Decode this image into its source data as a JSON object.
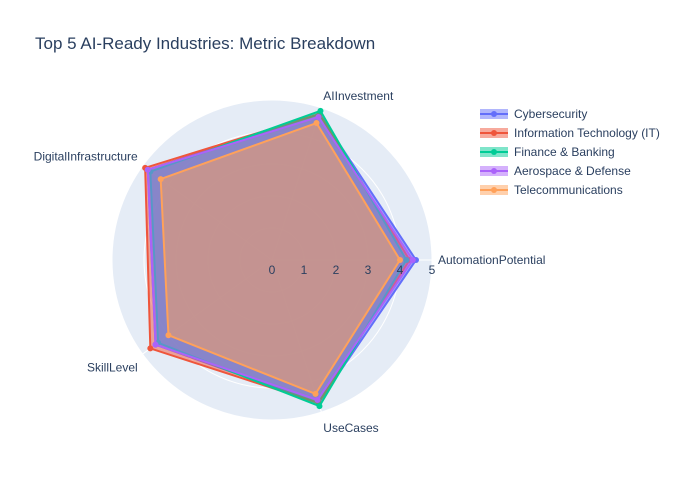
{
  "chart_data": {
    "type": "radar",
    "title": "Top 5 AI-Ready Industries: Metric Breakdown",
    "axes": [
      "AutomationPotential",
      "AIInvestment",
      "DigitalInfrastructure",
      "SkillLevel",
      "UseCases"
    ],
    "radial_range": [
      0,
      5
    ],
    "radial_ticks": [
      "0",
      "1",
      "2",
      "3",
      "4",
      "5"
    ],
    "legend_position": "top-right",
    "series": [
      {
        "name": "Cybersecurity",
        "color": "#636efa",
        "values": [
          4.5,
          4.8,
          4.8,
          4.5,
          4.7
        ]
      },
      {
        "name": "Information Technology (IT)",
        "color": "#ef553b",
        "values": [
          4.3,
          4.8,
          4.9,
          4.7,
          4.7
        ]
      },
      {
        "name": "Finance & Banking",
        "color": "#00cc96",
        "values": [
          4.2,
          4.9,
          4.7,
          4.4,
          4.8
        ]
      },
      {
        "name": "Aerospace & Defense",
        "color": "#ab63fa",
        "values": [
          4.4,
          4.7,
          4.8,
          4.5,
          4.6
        ]
      },
      {
        "name": "Telecommunications",
        "color": "#ffa15a",
        "values": [
          4.0,
          4.5,
          4.3,
          4.0,
          4.4
        ]
      }
    ]
  }
}
